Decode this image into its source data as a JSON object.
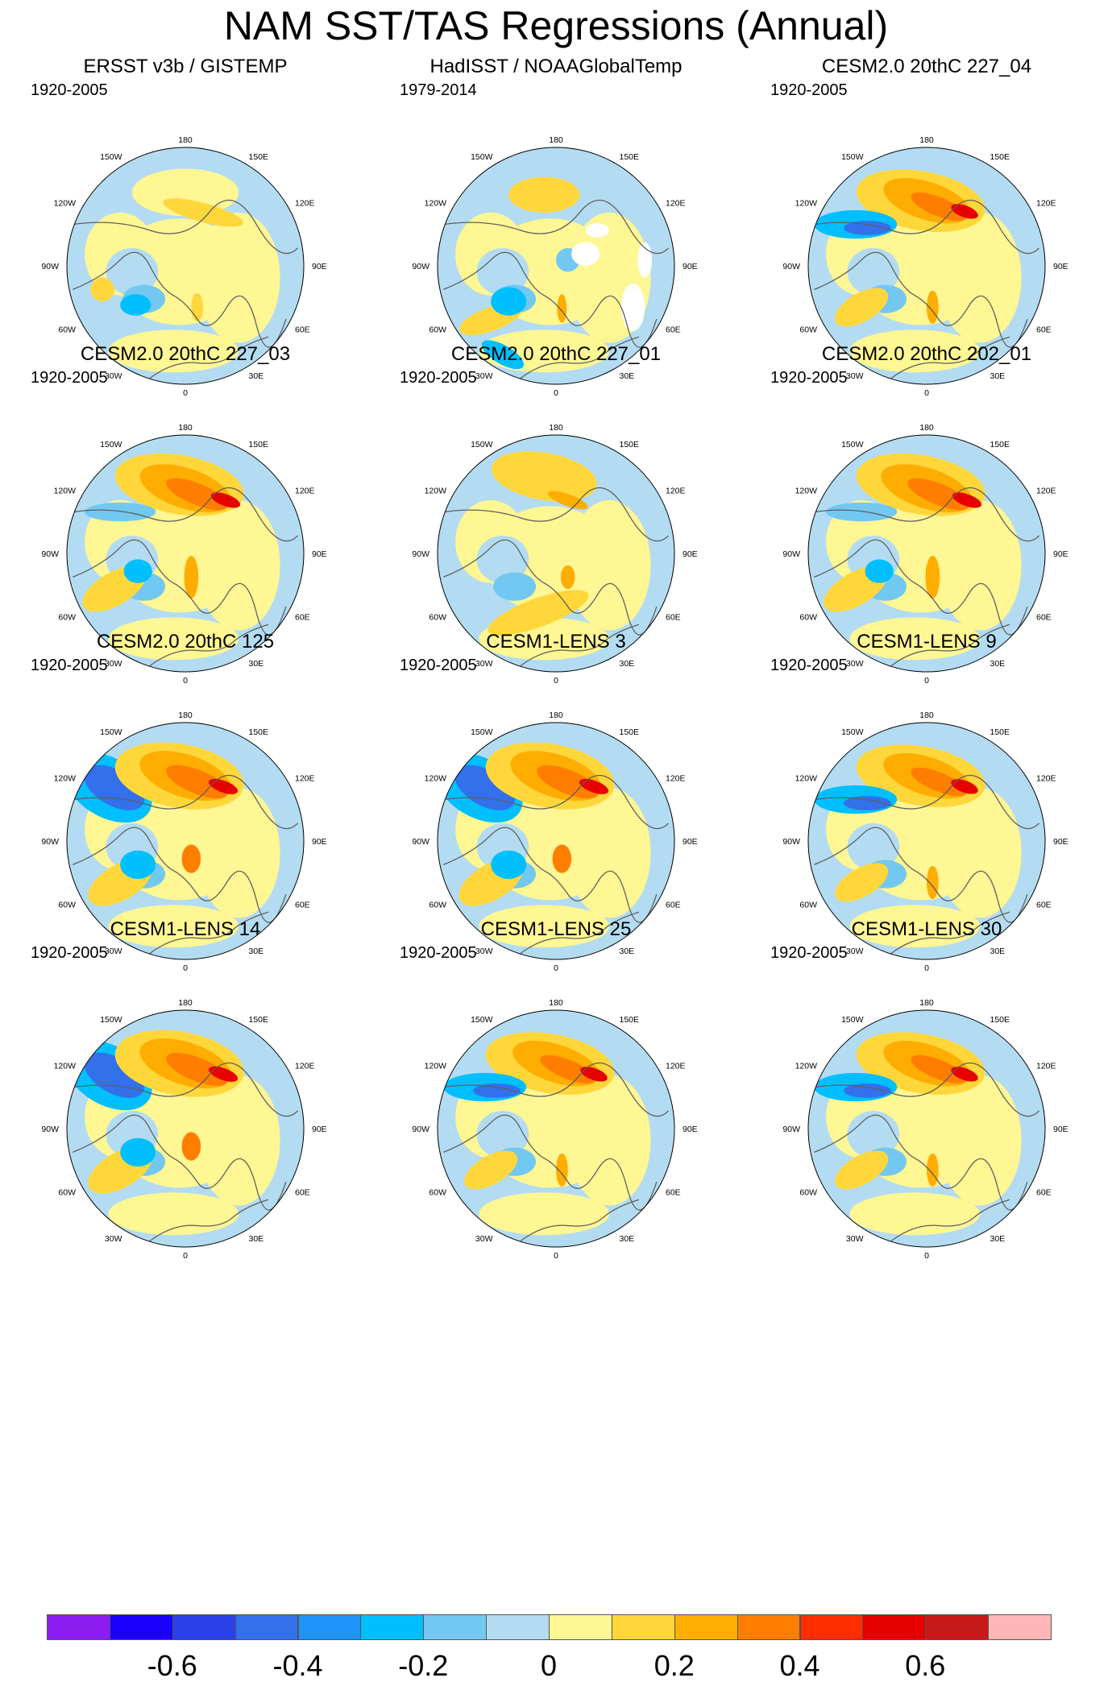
{
  "title": "NAM SST/TAS Regressions (Annual)",
  "lon_labels": [
    "180",
    "150E",
    "120E",
    "90E",
    "60E",
    "30E",
    "0",
    "30W",
    "60W",
    "90W",
    "120W",
    "150W"
  ],
  "colors": {
    "land_line": "#5f5f5f",
    "ocean_base": "#b3dcf2",
    "land_base": "#fff694",
    "missing": "#ffffff"
  },
  "panels": [
    {
      "title": "ERSST v3b / GISTEMP",
      "period": "1920-2005",
      "variant": "obs1"
    },
    {
      "title": "HadISST / NOAAGlobalTemp",
      "period": "1979-2014",
      "variant": "obs2"
    },
    {
      "title": "CESM2.0 20thC 227_04",
      "period": "1920-2005",
      "variant": "model_a"
    },
    {
      "title": "CESM2.0 20thC 227_03",
      "period": "1920-2005",
      "variant": "model_b"
    },
    {
      "title": "CESM2.0 20thC 227_01",
      "period": "1920-2005",
      "variant": "model_c"
    },
    {
      "title": "CESM2.0 20thC 202_01",
      "period": "1920-2005",
      "variant": "model_b"
    },
    {
      "title": "CESM2.0 20thC 125",
      "period": "1920-2005",
      "variant": "model_d"
    },
    {
      "title": "CESM1-LENS 3",
      "period": "1920-2005",
      "variant": "model_d"
    },
    {
      "title": "CESM1-LENS 9",
      "period": "1920-2005",
      "variant": "model_a"
    },
    {
      "title": "CESM1-LENS 14",
      "period": "1920-2005",
      "variant": "model_d"
    },
    {
      "title": "CESM1-LENS 25",
      "period": "1920-2005",
      "variant": "model_a"
    },
    {
      "title": "CESM1-LENS 30",
      "period": "1920-2005",
      "variant": "model_a"
    }
  ],
  "colorbar": {
    "colors": [
      "#8b1df0",
      "#1a00fd",
      "#2b41ea",
      "#3270ec",
      "#1f94fa",
      "#00bfff",
      "#73c8f1",
      "#b3dcf2",
      "#fff694",
      "#ffd73a",
      "#ffad00",
      "#ff7e00",
      "#ff2e00",
      "#e60000",
      "#c8191a",
      "#ffb6b6"
    ],
    "labels": [
      "-0.6",
      "-0.4",
      "-0.2",
      "0",
      "0.2",
      "0.4",
      "0.6"
    ]
  }
}
